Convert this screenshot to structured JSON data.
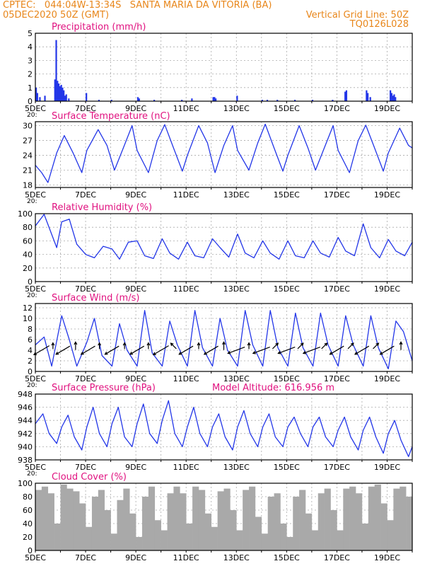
{
  "header": {
    "line1": "CPTEC:   044:04W-13:34S   SANTA MARIA DA VITORIA (BA)",
    "line2": "05DEC2020 50Z (GMT)",
    "grid_note": "Vertical Grid Line: 50Z",
    "code": "TQ0126L028",
    "panel_stub": "20:"
  },
  "colors": {
    "header": "#e8861a",
    "title": "#e0117f",
    "line": "#2336e8",
    "bar": "#2336e8",
    "cloud": "#a9a9a9",
    "wind": "#000000"
  },
  "x_axis": {
    "start_day": 5,
    "end_day": 20,
    "ticks": [
      "5DEC",
      "7DEC",
      "9DEC",
      "11DEC",
      "13DEC",
      "15DEC",
      "17DEC",
      "19DEC"
    ],
    "tick_days": [
      5,
      7,
      9,
      11,
      13,
      15,
      17,
      19
    ]
  },
  "chart_data": [
    {
      "id": "precip",
      "type": "bar",
      "title": "Precipitation  (mm/h)",
      "ylim": [
        0,
        5
      ],
      "yticks": [
        "0",
        "1",
        "2",
        "3",
        "4",
        "5"
      ],
      "x": [
        5.0,
        5.05,
        5.15,
        5.35,
        5.75,
        5.8,
        5.85,
        5.9,
        5.95,
        6.0,
        6.05,
        6.1,
        6.15,
        6.2,
        6.3,
        7.0,
        7.5,
        8.0,
        9.05,
        9.1,
        9.7,
        10.8,
        11.2,
        12.05,
        12.1,
        12.15,
        13.0,
        14.0,
        14.2,
        14.6,
        15.3,
        16.0,
        16.8,
        17.3,
        17.35,
        18.15,
        18.2,
        18.3,
        19.1,
        19.15,
        19.2,
        19.25,
        19.3
      ],
      "values": [
        1.0,
        0.6,
        0.3,
        0.4,
        1.6,
        4.5,
        1.5,
        1.3,
        1.1,
        1.2,
        1.0,
        0.8,
        0.4,
        0.5,
        0.2,
        0.6,
        0.1,
        0.1,
        0.3,
        0.2,
        0.1,
        0.1,
        0.2,
        0.3,
        0.3,
        0.2,
        0.4,
        0.1,
        0.1,
        0.1,
        0.1,
        0.1,
        0.1,
        0.7,
        0.8,
        0.8,
        0.6,
        0.3,
        0.8,
        0.6,
        0.4,
        0.5,
        0.3
      ]
    },
    {
      "id": "temp",
      "type": "line",
      "title": "Surface Temperature (nC)",
      "ylim": [
        17.5,
        30.8
      ],
      "yticks": [
        "18",
        "21",
        "24",
        "27",
        "30"
      ],
      "ytick_values": [
        18,
        21,
        24,
        27,
        30
      ],
      "x": [
        5.0,
        5.25,
        5.5,
        5.85,
        6.15,
        6.5,
        6.85,
        7.05,
        7.5,
        7.85,
        8.15,
        8.5,
        8.85,
        9.05,
        9.5,
        9.85,
        10.15,
        10.5,
        10.85,
        11.05,
        11.5,
        11.85,
        12.15,
        12.5,
        12.85,
        13.05,
        13.5,
        13.85,
        14.15,
        14.5,
        14.85,
        15.05,
        15.5,
        15.85,
        16.15,
        16.5,
        16.85,
        17.05,
        17.5,
        17.85,
        18.15,
        18.5,
        18.85,
        19.05,
        19.5,
        19.85,
        20.0
      ],
      "values": [
        22.0,
        20.5,
        18.5,
        24.5,
        28.0,
        24.5,
        20.5,
        25.0,
        29.2,
        26.0,
        21.0,
        25.5,
        30.0,
        25.0,
        20.5,
        27.0,
        30.2,
        25.5,
        20.8,
        24.0,
        30.0,
        26.5,
        20.5,
        26.0,
        30.0,
        25.0,
        21.0,
        26.5,
        30.3,
        25.5,
        20.8,
        24.0,
        30.0,
        25.5,
        21.0,
        25.5,
        30.0,
        25.0,
        20.5,
        27.0,
        30.1,
        25.5,
        20.8,
        24.5,
        29.5,
        26.0,
        25.5
      ]
    },
    {
      "id": "rh",
      "type": "line",
      "title": "Relative Humidity  (%)",
      "ylim": [
        0,
        100
      ],
      "yticks": [
        "0",
        "20",
        "40",
        "60",
        "80",
        "100"
      ],
      "ytick_values": [
        0,
        20,
        40,
        60,
        80,
        100
      ],
      "x": [
        5.0,
        5.35,
        5.85,
        6.05,
        6.35,
        6.65,
        7.0,
        7.35,
        7.7,
        8.05,
        8.35,
        8.7,
        9.05,
        9.35,
        9.7,
        10.05,
        10.35,
        10.7,
        11.05,
        11.35,
        11.7,
        12.05,
        12.35,
        12.7,
        13.05,
        13.35,
        13.7,
        14.05,
        14.35,
        14.7,
        15.05,
        15.35,
        15.7,
        16.05,
        16.35,
        16.7,
        17.05,
        17.35,
        17.7,
        18.05,
        18.35,
        18.7,
        19.05,
        19.35,
        19.7,
        20.0
      ],
      "values": [
        82,
        99,
        50,
        88,
        92,
        55,
        40,
        35,
        52,
        48,
        33,
        58,
        60,
        38,
        34,
        63,
        42,
        33,
        58,
        38,
        35,
        63,
        50,
        36,
        70,
        42,
        35,
        60,
        42,
        33,
        60,
        38,
        35,
        60,
        42,
        36,
        65,
        45,
        38,
        85,
        50,
        35,
        62,
        45,
        38,
        58
      ]
    },
    {
      "id": "wind",
      "type": "line",
      "title": "Surface Wind  (m/s)",
      "ylim": [
        0,
        12.8
      ],
      "yticks": [
        "0",
        "2",
        "4",
        "6",
        "8",
        "10",
        "12"
      ],
      "ytick_values": [
        0,
        2,
        4,
        6,
        8,
        10,
        12
      ],
      "x": [
        5.0,
        5.35,
        5.65,
        6.05,
        6.35,
        6.65,
        7.05,
        7.35,
        7.65,
        8.05,
        8.35,
        8.65,
        9.05,
        9.35,
        9.65,
        10.05,
        10.35,
        10.65,
        11.05,
        11.35,
        11.65,
        12.05,
        12.35,
        12.65,
        13.05,
        13.35,
        13.65,
        14.05,
        14.35,
        14.65,
        15.05,
        15.35,
        15.65,
        16.05,
        16.35,
        16.65,
        17.05,
        17.35,
        17.65,
        18.05,
        18.35,
        18.65,
        19.05,
        19.35,
        19.65,
        20.0
      ],
      "values": [
        5.0,
        6.5,
        1.0,
        10.5,
        6.0,
        1.0,
        5.5,
        10.0,
        3.0,
        1.0,
        9.0,
        4.0,
        1.0,
        11.5,
        3.5,
        1.0,
        9.5,
        5.0,
        1.0,
        11.5,
        4.5,
        1.0,
        10.0,
        4.0,
        1.0,
        11.5,
        5.0,
        1.0,
        11.5,
        4.5,
        1.0,
        11.0,
        4.5,
        1.0,
        11.0,
        5.0,
        1.0,
        10.5,
        5.0,
        1.0,
        10.5,
        4.5,
        0.5,
        9.5,
        7.5,
        2.0
      ],
      "arrows": [
        {
          "day": 5.25,
          "dir": "SW",
          "len": 0.9
        },
        {
          "day": 5.7,
          "dir": "N",
          "len": 0.2
        },
        {
          "day": 6.1,
          "dir": "SW",
          "len": 0.8
        },
        {
          "day": 6.6,
          "dir": "N",
          "len": 0.3
        },
        {
          "day": 7.1,
          "dir": "SW",
          "len": 0.8
        },
        {
          "day": 7.55,
          "dir": "N",
          "len": 0.2
        },
        {
          "day": 8.05,
          "dir": "SW",
          "len": 0.8
        },
        {
          "day": 8.55,
          "dir": "N",
          "len": 0.2
        },
        {
          "day": 9.05,
          "dir": "SW",
          "len": 0.8
        },
        {
          "day": 9.5,
          "dir": "N",
          "len": 0.2
        },
        {
          "day": 10.0,
          "dir": "SW",
          "len": 0.9
        },
        {
          "day": 10.5,
          "dir": "NW",
          "len": 0.3
        },
        {
          "day": 11.0,
          "dir": "SW",
          "len": 0.8
        },
        {
          "day": 11.5,
          "dir": "N",
          "len": 0.2
        },
        {
          "day": 12.0,
          "dir": "SW",
          "len": 0.8
        },
        {
          "day": 12.5,
          "dir": "N",
          "len": 0.3
        },
        {
          "day": 13.0,
          "dir": "WSW",
          "len": 0.9
        },
        {
          "day": 13.5,
          "dir": "N",
          "len": 0.2
        },
        {
          "day": 14.0,
          "dir": "WSW",
          "len": 0.9
        },
        {
          "day": 14.55,
          "dir": "NE",
          "len": 0.3
        },
        {
          "day": 15.0,
          "dir": "WSW",
          "len": 0.9
        },
        {
          "day": 15.55,
          "dir": "NE",
          "len": 0.3
        },
        {
          "day": 16.0,
          "dir": "WSW",
          "len": 0.9
        },
        {
          "day": 16.5,
          "dir": "NE",
          "len": 0.3
        },
        {
          "day": 17.0,
          "dir": "SW",
          "len": 0.8
        },
        {
          "day": 17.55,
          "dir": "NE",
          "len": 0.3
        },
        {
          "day": 18.0,
          "dir": "SW",
          "len": 0.8
        },
        {
          "day": 18.55,
          "dir": "NE",
          "len": 0.3
        },
        {
          "day": 19.0,
          "dir": "SW",
          "len": 0.8
        },
        {
          "day": 19.55,
          "dir": "N",
          "len": 0.3
        }
      ]
    },
    {
      "id": "pres",
      "type": "line",
      "title": "Surface Pressure  (hPa)",
      "subtitle": "Model Altitude: 616.956  m",
      "ylim": [
        938,
        948
      ],
      "yticks": [
        "938",
        "940",
        "942",
        "944",
        "946",
        "948"
      ],
      "ytick_values": [
        938,
        940,
        942,
        944,
        946,
        948
      ],
      "x": [
        5.0,
        5.3,
        5.55,
        5.85,
        6.05,
        6.3,
        6.55,
        6.85,
        7.05,
        7.3,
        7.55,
        7.85,
        8.05,
        8.3,
        8.55,
        8.85,
        9.05,
        9.3,
        9.55,
        9.85,
        10.05,
        10.3,
        10.55,
        10.85,
        11.05,
        11.3,
        11.55,
        11.85,
        12.05,
        12.3,
        12.55,
        12.85,
        13.05,
        13.3,
        13.55,
        13.85,
        14.05,
        14.3,
        14.55,
        14.85,
        15.05,
        15.3,
        15.55,
        15.85,
        16.05,
        16.3,
        16.55,
        16.85,
        17.05,
        17.3,
        17.55,
        17.85,
        18.05,
        18.3,
        18.55,
        18.85,
        19.05,
        19.3,
        19.55,
        19.85,
        20.0
      ],
      "values": [
        943.5,
        945.0,
        942.0,
        940.5,
        943.0,
        944.8,
        941.5,
        939.5,
        943.0,
        946.0,
        942.0,
        940.0,
        943.5,
        946.0,
        941.5,
        940.0,
        943.5,
        946.5,
        942.0,
        940.5,
        944.0,
        947.0,
        942.0,
        940.0,
        943.0,
        946.0,
        942.0,
        940.0,
        943.0,
        945.0,
        941.5,
        939.5,
        943.0,
        945.5,
        942.0,
        940.0,
        943.0,
        945.0,
        941.5,
        940.0,
        943.0,
        944.5,
        942.0,
        940.0,
        943.0,
        944.5,
        941.5,
        940.0,
        942.5,
        944.5,
        941.5,
        939.5,
        942.5,
        944.5,
        941.5,
        939.0,
        942.0,
        944.0,
        941.0,
        938.5,
        940.0
      ]
    },
    {
      "id": "cloud",
      "type": "bar",
      "title": "Cloud Cover  (%)",
      "ylim": [
        0,
        100
      ],
      "yticks": [
        "0",
        "20",
        "40",
        "60",
        "80",
        "100"
      ],
      "x": [
        5.0,
        5.25,
        5.5,
        5.75,
        6.0,
        6.25,
        6.5,
        6.75,
        7.0,
        7.25,
        7.5,
        7.75,
        8.0,
        8.25,
        8.5,
        8.75,
        9.0,
        9.25,
        9.5,
        9.75,
        10.0,
        10.25,
        10.5,
        10.75,
        11.0,
        11.25,
        11.5,
        11.75,
        12.0,
        12.25,
        12.5,
        12.75,
        13.0,
        13.25,
        13.5,
        13.75,
        14.0,
        14.25,
        14.5,
        14.75,
        15.0,
        15.25,
        15.5,
        15.75,
        16.0,
        16.25,
        16.5,
        16.75,
        17.0,
        17.25,
        17.5,
        17.75,
        18.0,
        18.25,
        18.5,
        18.75,
        19.0,
        19.25,
        19.5,
        19.75
      ],
      "values": [
        90,
        95,
        85,
        40,
        98,
        92,
        88,
        70,
        35,
        80,
        90,
        60,
        25,
        75,
        92,
        55,
        20,
        80,
        95,
        45,
        30,
        85,
        95,
        85,
        40,
        95,
        90,
        55,
        35,
        88,
        92,
        60,
        30,
        90,
        95,
        50,
        25,
        80,
        85,
        40,
        20,
        80,
        90,
        55,
        30,
        85,
        92,
        60,
        30,
        92,
        95,
        85,
        40,
        95,
        98,
        70,
        45,
        92,
        95,
        80
      ]
    }
  ]
}
